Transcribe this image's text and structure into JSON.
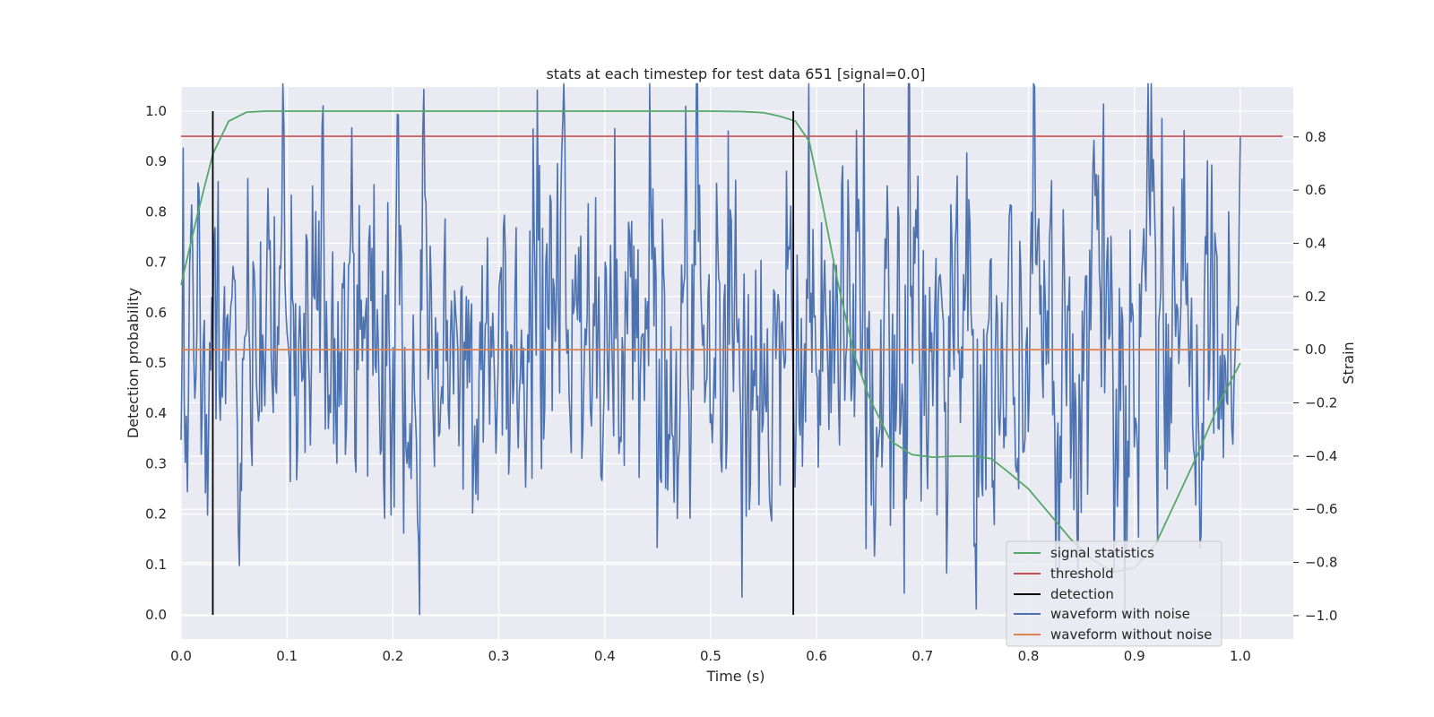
{
  "chart_data": {
    "type": "line",
    "title": "stats at each timestep for test data 651 [signal=0.0]",
    "xlabel": "Time (s)",
    "ylabel": "Detection probability",
    "ylabel_right": "Strain",
    "xlim": [
      0.0,
      1.05
    ],
    "ylim": [
      -0.048,
      1.048
    ],
    "ylim_right": [
      -1.088,
      0.988
    ],
    "x_ticks": [
      "0.0",
      "0.1",
      "0.2",
      "0.3",
      "0.4",
      "0.5",
      "0.6",
      "0.7",
      "0.8",
      "0.9",
      "1.0"
    ],
    "y_ticks": [
      "0.0",
      "0.1",
      "0.2",
      "0.3",
      "0.4",
      "0.5",
      "0.6",
      "0.7",
      "0.8",
      "0.9",
      "1.0"
    ],
    "y_ticks_right": [
      "−1.0",
      "−0.8",
      "−0.6",
      "−0.4",
      "−0.2",
      "0.0",
      "0.2",
      "0.4",
      "0.6",
      "0.8"
    ],
    "legend_position": "lower-right",
    "series": [
      {
        "name": "signal statistics",
        "axis": "left",
        "color": "#55a868",
        "x": [
          0.0,
          0.015,
          0.03,
          0.045,
          0.062,
          0.08,
          0.1,
          0.15,
          0.2,
          0.3,
          0.4,
          0.5,
          0.53,
          0.55,
          0.565,
          0.58,
          0.593,
          0.605,
          0.62,
          0.635,
          0.65,
          0.67,
          0.69,
          0.71,
          0.73,
          0.75,
          0.765,
          0.78,
          0.8,
          0.82,
          0.84,
          0.86,
          0.88,
          0.9,
          0.92,
          0.94,
          0.96,
          0.98,
          1.0
        ],
        "y": [
          0.655,
          0.79,
          0.915,
          0.98,
          0.998,
          1.0,
          1.0,
          1.0,
          1.0,
          1.0,
          1.0,
          1.0,
          0.999,
          0.997,
          0.99,
          0.98,
          0.94,
          0.82,
          0.66,
          0.52,
          0.43,
          0.345,
          0.318,
          0.313,
          0.315,
          0.315,
          0.31,
          0.285,
          0.25,
          0.2,
          0.15,
          0.11,
          0.085,
          0.093,
          0.14,
          0.23,
          0.32,
          0.42,
          0.5
        ]
      },
      {
        "name": "threshold",
        "axis": "left",
        "color": "#c44e52",
        "x": [
          0.0,
          1.04
        ],
        "y": [
          0.95,
          0.95
        ]
      },
      {
        "name": "detection",
        "axis": "left",
        "color": "#000000",
        "x": [
          0.03,
          0.578
        ],
        "y": [
          0.0,
          1.0
        ]
      },
      {
        "name": "waveform with noise",
        "axis": "right",
        "color": "#4c72b0",
        "points": 1000,
        "x_range": [
          0.0,
          1.0
        ],
        "y_range": [
          -1.0,
          1.0
        ]
      },
      {
        "name": "waveform without noise",
        "axis": "right",
        "color": "#dd8452",
        "x": [
          0.0,
          1.0
        ],
        "y": [
          0.0,
          0.0
        ]
      }
    ]
  }
}
